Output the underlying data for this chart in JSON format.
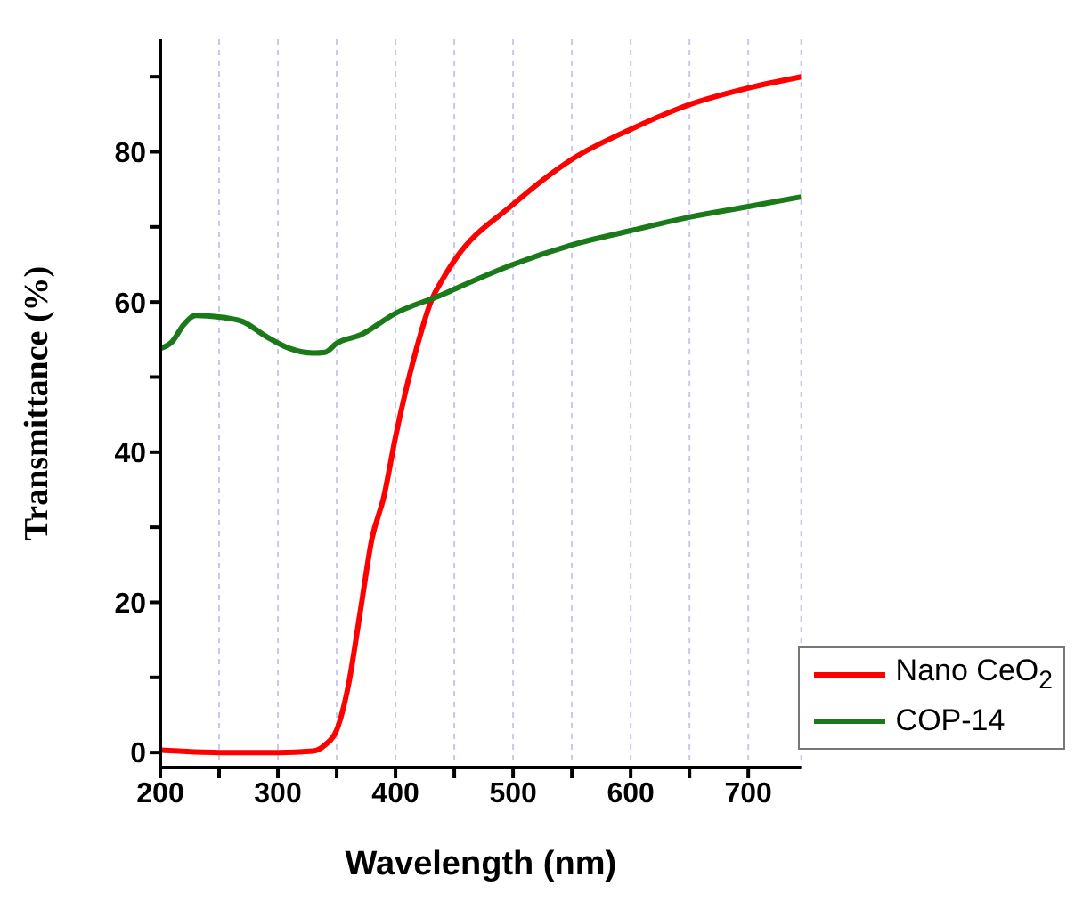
{
  "chart_data": {
    "type": "line",
    "xlabel": "Wavelength (nm)",
    "ylabel": "Transmittance (%)",
    "xlim": [
      200,
      745
    ],
    "ylim": [
      -2,
      95
    ],
    "xticks": [
      200,
      {
        "value": 250,
        "label": null
      },
      300,
      {
        "value": 350,
        "label": null
      },
      400,
      {
        "value": 450,
        "label": null
      },
      500,
      {
        "value": 550,
        "label": null
      },
      600,
      {
        "value": 650,
        "label": null
      },
      700
    ],
    "yticks": [
      0,
      {
        "value": 10,
        "label": null
      },
      20,
      {
        "value": 30,
        "label": null
      },
      40,
      {
        "value": 50,
        "label": null
      },
      60,
      {
        "value": 70,
        "label": null
      },
      80,
      {
        "value": 90,
        "label": null
      }
    ],
    "grid": "x",
    "legend": "bottom right",
    "marker": "none",
    "line_style": "solid",
    "series": [
      {
        "name": "Nano CeO$_{2}$",
        "color": "#ff0000",
        "x": [
          200,
          250,
          300,
          330,
          340,
          350,
          360,
          370,
          380,
          390,
          400,
          410,
          420,
          430,
          440,
          450,
          500,
          550,
          600,
          650,
          700,
          745
        ],
        "values": [
          0.3,
          0,
          0,
          0.2,
          1,
          3,
          9,
          18.7,
          28.5,
          34,
          42,
          49,
          55,
          60,
          63,
          65.5,
          73,
          79,
          83,
          86.3,
          88.5,
          90
        ]
      },
      {
        "name": "COP-14",
        "color": "#1a7a1a",
        "x": [
          200,
          210,
          220,
          230,
          250,
          270,
          290,
          310,
          330,
          340,
          350,
          370,
          400,
          440,
          450,
          500,
          550,
          600,
          650,
          700,
          745
        ],
        "values": [
          53.8,
          54.7,
          57,
          58.2,
          58,
          57.4,
          55.4,
          53.8,
          53.2,
          53.3,
          54.5,
          55.6,
          58.5,
          61,
          61.7,
          65,
          67.6,
          69.5,
          71.3,
          72.7,
          74
        ]
      }
    ]
  }
}
